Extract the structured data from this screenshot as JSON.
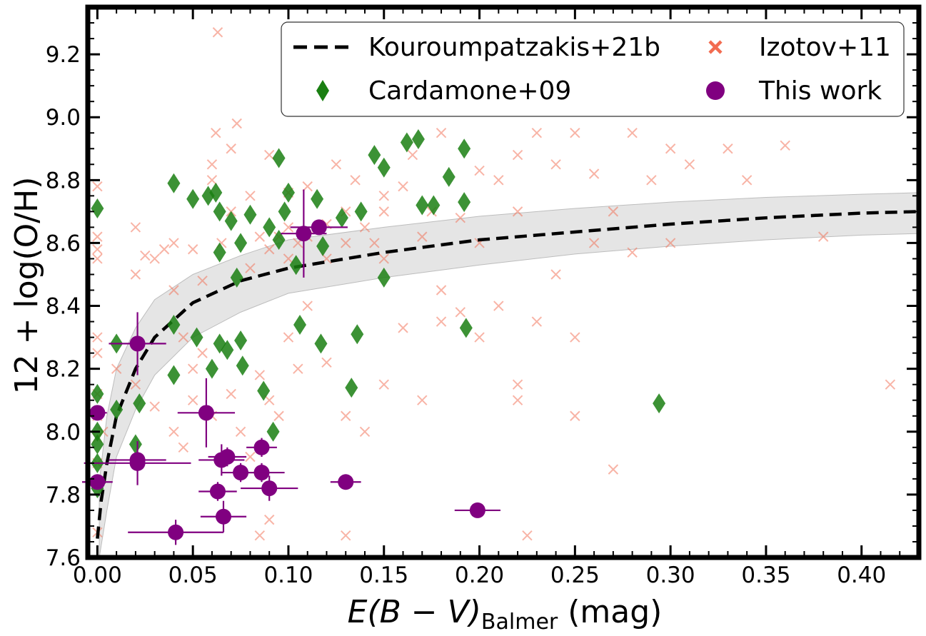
{
  "chart_data": {
    "type": "scatter",
    "xlabel": {
      "italic": "E(B − V)",
      "sub": "Balmer",
      "unit": " (mag)"
    },
    "ylabel": "12 + log(O/H)",
    "xlim": [
      -0.005,
      0.43
    ],
    "ylim": [
      7.6,
      9.35
    ],
    "xticks": [
      0.0,
      0.05,
      0.1,
      0.15,
      0.2,
      0.25,
      0.3,
      0.35,
      0.4
    ],
    "xtick_labels": [
      "0.00",
      "0.05",
      "0.10",
      "0.15",
      "0.20",
      "0.25",
      "0.30",
      "0.35",
      "0.40"
    ],
    "yticks": [
      7.6,
      7.8,
      8.0,
      8.2,
      8.4,
      8.6,
      8.8,
      9.0,
      9.2
    ],
    "ytick_labels": [
      "7.6",
      "7.8",
      "8.0",
      "8.2",
      "8.4",
      "8.6",
      "8.8",
      "9.0",
      "9.2"
    ],
    "grid": false,
    "legend_position": "top-right",
    "legend": [
      {
        "label": "Kouroumpatzakis+21b",
        "marker": "dashed-line"
      },
      {
        "label": "Izotov+11",
        "marker": "x"
      },
      {
        "label": "Cardamone+09",
        "marker": "diamond"
      },
      {
        "label": "This work",
        "marker": "circle"
      }
    ],
    "colors": {
      "izotov": "#f26b50",
      "cardamone": "#1a7f12",
      "this_work": "#800080",
      "curve": "#000000",
      "band": "#d3d3d3"
    },
    "curve": {
      "name": "Kouroumpatzakis+21b",
      "points": [
        [
          0.0,
          7.66
        ],
        [
          0.002,
          7.78
        ],
        [
          0.005,
          7.9
        ],
        [
          0.01,
          8.05
        ],
        [
          0.02,
          8.2
        ],
        [
          0.03,
          8.3
        ],
        [
          0.05,
          8.41
        ],
        [
          0.075,
          8.48
        ],
        [
          0.1,
          8.52
        ],
        [
          0.15,
          8.57
        ],
        [
          0.2,
          8.61
        ],
        [
          0.25,
          8.635
        ],
        [
          0.3,
          8.66
        ],
        [
          0.35,
          8.68
        ],
        [
          0.4,
          8.695
        ],
        [
          0.43,
          8.7
        ]
      ],
      "band_upper": [
        [
          0.001,
          7.84
        ],
        [
          0.005,
          8.05
        ],
        [
          0.01,
          8.2
        ],
        [
          0.02,
          8.33
        ],
        [
          0.03,
          8.42
        ],
        [
          0.05,
          8.5
        ],
        [
          0.075,
          8.56
        ],
        [
          0.1,
          8.61
        ],
        [
          0.15,
          8.65
        ],
        [
          0.2,
          8.685
        ],
        [
          0.25,
          8.71
        ],
        [
          0.3,
          8.73
        ],
        [
          0.35,
          8.745
        ],
        [
          0.4,
          8.755
        ],
        [
          0.43,
          8.76
        ]
      ],
      "band_lower": [
        [
          0.001,
          7.6
        ],
        [
          0.005,
          7.75
        ],
        [
          0.01,
          7.92
        ],
        [
          0.02,
          8.07
        ],
        [
          0.03,
          8.18
        ],
        [
          0.05,
          8.3
        ],
        [
          0.075,
          8.38
        ],
        [
          0.1,
          8.44
        ],
        [
          0.15,
          8.49
        ],
        [
          0.2,
          8.53
        ],
        [
          0.25,
          8.565
        ],
        [
          0.3,
          8.59
        ],
        [
          0.35,
          8.61
        ],
        [
          0.4,
          8.625
        ],
        [
          0.43,
          8.63
        ]
      ]
    },
    "series": [
      {
        "name": "Izotov+11",
        "marker": "x",
        "points": [
          [
            0.0,
            8.3
          ],
          [
            0.0,
            8.25
          ],
          [
            0.0,
            8.55
          ],
          [
            0.0,
            8.58
          ],
          [
            0.0,
            8.62
          ],
          [
            0.0,
            8.12
          ],
          [
            0.0,
            8.05
          ],
          [
            0.0,
            7.98
          ],
          [
            0.0,
            7.9
          ],
          [
            0.0,
            7.68
          ],
          [
            0.0,
            8.78
          ],
          [
            0.003,
            8.0
          ],
          [
            0.01,
            8.2
          ],
          [
            0.02,
            8.5
          ],
          [
            0.02,
            8.65
          ],
          [
            0.025,
            8.56
          ],
          [
            0.03,
            8.55
          ],
          [
            0.035,
            8.58
          ],
          [
            0.04,
            8.6
          ],
          [
            0.04,
            8.45
          ],
          [
            0.045,
            8.3
          ],
          [
            0.05,
            8.58
          ],
          [
            0.05,
            8.2
          ],
          [
            0.055,
            8.48
          ],
          [
            0.06,
            8.8
          ],
          [
            0.06,
            8.85
          ],
          [
            0.062,
            8.95
          ],
          [
            0.063,
            9.27
          ],
          [
            0.065,
            8.6
          ],
          [
            0.07,
            8.9
          ],
          [
            0.07,
            8.7
          ],
          [
            0.073,
            8.98
          ],
          [
            0.08,
            8.52
          ],
          [
            0.08,
            8.75
          ],
          [
            0.085,
            8.62
          ],
          [
            0.09,
            8.88
          ],
          [
            0.09,
            8.58
          ],
          [
            0.095,
            8.62
          ],
          [
            0.1,
            8.76
          ],
          [
            0.1,
            8.65
          ],
          [
            0.1,
            8.55
          ],
          [
            0.105,
            8.6
          ],
          [
            0.11,
            8.78
          ],
          [
            0.11,
            8.62
          ],
          [
            0.12,
            8.66
          ],
          [
            0.12,
            8.55
          ],
          [
            0.125,
            8.85
          ],
          [
            0.13,
            8.7
          ],
          [
            0.13,
            8.6
          ],
          [
            0.135,
            8.8
          ],
          [
            0.14,
            8.65
          ],
          [
            0.145,
            8.6
          ],
          [
            0.15,
            8.75
          ],
          [
            0.15,
            8.7
          ],
          [
            0.15,
            8.55
          ],
          [
            0.16,
            8.78
          ],
          [
            0.165,
            8.88
          ],
          [
            0.17,
            8.62
          ],
          [
            0.175,
            8.7
          ],
          [
            0.18,
            8.95
          ],
          [
            0.18,
            8.45
          ],
          [
            0.19,
            8.68
          ],
          [
            0.2,
            8.83
          ],
          [
            0.2,
            8.6
          ],
          [
            0.21,
            8.8
          ],
          [
            0.22,
            8.7
          ],
          [
            0.22,
            8.88
          ],
          [
            0.23,
            8.95
          ],
          [
            0.24,
            8.85
          ],
          [
            0.25,
            8.95
          ],
          [
            0.26,
            8.82
          ],
          [
            0.27,
            8.7
          ],
          [
            0.28,
            8.95
          ],
          [
            0.29,
            8.8
          ],
          [
            0.3,
            8.9
          ],
          [
            0.31,
            8.85
          ],
          [
            0.33,
            8.9
          ],
          [
            0.34,
            8.8
          ],
          [
            0.36,
            8.91
          ],
          [
            0.38,
            8.62
          ],
          [
            0.02,
            8.15
          ],
          [
            0.03,
            8.08
          ],
          [
            0.04,
            8.0
          ],
          [
            0.045,
            7.95
          ],
          [
            0.05,
            8.1
          ],
          [
            0.055,
            8.25
          ],
          [
            0.06,
            8.05
          ],
          [
            0.07,
            8.12
          ],
          [
            0.075,
            8.0
          ],
          [
            0.08,
            7.92
          ],
          [
            0.085,
            8.18
          ],
          [
            0.09,
            8.1
          ],
          [
            0.095,
            8.05
          ],
          [
            0.1,
            8.3
          ],
          [
            0.105,
            8.2
          ],
          [
            0.11,
            8.4
          ],
          [
            0.12,
            8.22
          ],
          [
            0.13,
            8.05
          ],
          [
            0.14,
            8.0
          ],
          [
            0.15,
            8.15
          ],
          [
            0.16,
            8.33
          ],
          [
            0.17,
            8.1
          ],
          [
            0.18,
            8.35
          ],
          [
            0.19,
            8.38
          ],
          [
            0.2,
            8.3
          ],
          [
            0.21,
            8.4
          ],
          [
            0.22,
            8.15
          ],
          [
            0.23,
            8.35
          ],
          [
            0.24,
            8.5
          ],
          [
            0.25,
            8.3
          ],
          [
            0.22,
            8.1
          ],
          [
            0.25,
            8.05
          ],
          [
            0.27,
            7.88
          ],
          [
            0.09,
            7.72
          ],
          [
            0.085,
            7.67
          ],
          [
            0.13,
            7.67
          ],
          [
            0.225,
            7.67
          ],
          [
            0.415,
            8.15
          ],
          [
            0.3,
            8.6
          ],
          [
            0.28,
            8.57
          ],
          [
            0.26,
            8.6
          ]
        ]
      },
      {
        "name": "Cardamone+09",
        "marker": "diamond",
        "points": [
          [
            0.0,
            8.71
          ],
          [
            0.0,
            8.12
          ],
          [
            0.0,
            8.0
          ],
          [
            0.0,
            7.96
          ],
          [
            0.0,
            7.9
          ],
          [
            0.0,
            7.82
          ],
          [
            0.01,
            8.28
          ],
          [
            0.01,
            8.07
          ],
          [
            0.02,
            7.96
          ],
          [
            0.022,
            8.09
          ],
          [
            0.04,
            8.79
          ],
          [
            0.04,
            8.34
          ],
          [
            0.04,
            8.18
          ],
          [
            0.05,
            8.74
          ],
          [
            0.052,
            8.3
          ],
          [
            0.058,
            8.75
          ],
          [
            0.06,
            8.2
          ],
          [
            0.062,
            8.76
          ],
          [
            0.064,
            8.7
          ],
          [
            0.064,
            8.57
          ],
          [
            0.064,
            8.28
          ],
          [
            0.068,
            8.26
          ],
          [
            0.07,
            8.67
          ],
          [
            0.073,
            8.49
          ],
          [
            0.075,
            8.6
          ],
          [
            0.075,
            8.29
          ],
          [
            0.076,
            8.21
          ],
          [
            0.08,
            8.69
          ],
          [
            0.087,
            8.13
          ],
          [
            0.09,
            8.65
          ],
          [
            0.092,
            8.0
          ],
          [
            0.095,
            8.87
          ],
          [
            0.095,
            8.61
          ],
          [
            0.098,
            8.7
          ],
          [
            0.1,
            8.76
          ],
          [
            0.104,
            8.53
          ],
          [
            0.106,
            8.34
          ],
          [
            0.115,
            8.74
          ],
          [
            0.118,
            8.59
          ],
          [
            0.117,
            8.28
          ],
          [
            0.128,
            8.68
          ],
          [
            0.133,
            8.14
          ],
          [
            0.136,
            8.31
          ],
          [
            0.138,
            8.7
          ],
          [
            0.145,
            8.88
          ],
          [
            0.15,
            8.84
          ],
          [
            0.15,
            8.49
          ],
          [
            0.162,
            8.92
          ],
          [
            0.168,
            8.93
          ],
          [
            0.17,
            8.72
          ],
          [
            0.176,
            8.72
          ],
          [
            0.184,
            8.81
          ],
          [
            0.192,
            8.9
          ],
          [
            0.192,
            8.73
          ],
          [
            0.193,
            8.33
          ],
          [
            0.294,
            8.09
          ]
        ]
      },
      {
        "name": "This work",
        "marker": "circle",
        "points": [
          {
            "x": 0.0,
            "y": 8.06,
            "xerr": 0.005,
            "yerr": 0.0
          },
          {
            "x": 0.0,
            "y": 7.84,
            "xerr": 0.008,
            "yerr": 0.0
          },
          {
            "x": 0.021,
            "y": 8.28,
            "xerr": 0.015,
            "yerr": 0.1
          },
          {
            "x": 0.021,
            "y": 7.9,
            "xerr": 0.028,
            "yerr": 0.07
          },
          {
            "x": 0.021,
            "y": 7.91,
            "xerr": 0.015,
            "yerr": 0.0
          },
          {
            "x": 0.041,
            "y": 7.68,
            "xerr": 0.025,
            "yerr": 0.04
          },
          {
            "x": 0.057,
            "y": 8.06,
            "xerr": 0.015,
            "yerr": 0.11
          },
          {
            "x": 0.063,
            "y": 7.81,
            "xerr": 0.01,
            "yerr": 0.03
          },
          {
            "x": 0.065,
            "y": 7.91,
            "xerr": 0.012,
            "yerr": 0.05
          },
          {
            "x": 0.066,
            "y": 7.73,
            "xerr": 0.012,
            "yerr": 0.05
          },
          {
            "x": 0.068,
            "y": 7.92,
            "xerr": 0.01,
            "yerr": 0.03
          },
          {
            "x": 0.075,
            "y": 7.87,
            "xerr": 0.01,
            "yerr": 0.03
          },
          {
            "x": 0.086,
            "y": 7.95,
            "xerr": 0.008,
            "yerr": 0.03
          },
          {
            "x": 0.086,
            "y": 7.87,
            "xerr": 0.012,
            "yerr": 0.03
          },
          {
            "x": 0.09,
            "y": 7.82,
            "xerr": 0.015,
            "yerr": 0.04
          },
          {
            "x": 0.108,
            "y": 8.63,
            "xerr": 0.012,
            "yerr": 0.14
          },
          {
            "x": 0.116,
            "y": 8.65,
            "xerr": 0.015,
            "yerr": 0.0
          },
          {
            "x": 0.13,
            "y": 7.84,
            "xerr": 0.008,
            "yerr": 0.0
          },
          {
            "x": 0.199,
            "y": 7.75,
            "xerr": 0.012,
            "yerr": 0.0
          }
        ]
      }
    ]
  }
}
